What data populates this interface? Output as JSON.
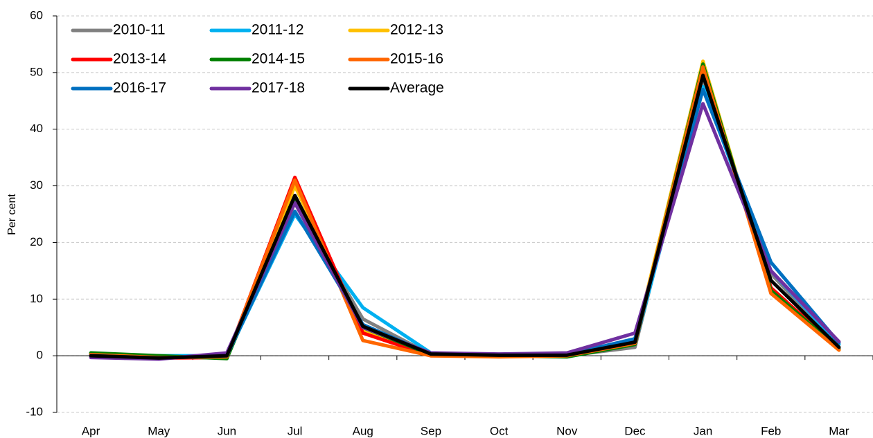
{
  "chart_data": {
    "type": "line",
    "y_label": "Per cent",
    "categories": [
      "Apr",
      "May",
      "Jun",
      "Jul",
      "Aug",
      "Sep",
      "Oct",
      "Nov",
      "Dec",
      "Jan",
      "Feb",
      "Mar"
    ],
    "series": [
      {
        "name": "2010-11",
        "color": "#808080",
        "values": [
          0,
          -0.3,
          0,
          27,
          6.5,
          0.2,
          0,
          0,
          1.5,
          49,
          14.5,
          1.5
        ]
      },
      {
        "name": "2011-12",
        "color": "#00b0f0",
        "values": [
          0,
          0,
          0,
          25,
          8.5,
          0.5,
          0,
          0,
          2,
          47.5,
          15,
          2
        ]
      },
      {
        "name": "2012-13",
        "color": "#ffc000",
        "values": [
          0.2,
          -0.3,
          -0.2,
          30,
          4.5,
          0,
          0,
          0,
          2.5,
          52,
          11.5,
          1
        ]
      },
      {
        "name": "2013-14",
        "color": "#ff0000",
        "values": [
          0.3,
          -0.4,
          -0.3,
          31.5,
          4,
          0,
          0,
          0,
          2,
          51,
          12,
          1.2
        ]
      },
      {
        "name": "2014-15",
        "color": "#008000",
        "values": [
          0.5,
          0,
          -0.5,
          28,
          5,
          0.2,
          0,
          -0.2,
          2,
          51.5,
          11.5,
          1.2
        ]
      },
      {
        "name": "2015-16",
        "color": "#ff6600",
        "values": [
          0.2,
          -0.3,
          -0.2,
          31,
          2.7,
          0,
          -0.2,
          0,
          2.2,
          51,
          11,
          1
        ]
      },
      {
        "name": "2016-17",
        "color": "#0070c0",
        "values": [
          0,
          -0.4,
          0,
          25.5,
          5.5,
          0.3,
          0.2,
          0.2,
          3,
          47,
          16.5,
          2.3
        ]
      },
      {
        "name": "2017-18",
        "color": "#7030a0",
        "values": [
          -0.3,
          -0.6,
          0.5,
          27,
          5,
          0.5,
          0.3,
          0.5,
          4,
          44.5,
          15,
          2.5
        ]
      },
      {
        "name": "Average",
        "color": "#000000",
        "values": [
          0,
          -0.4,
          0,
          28.3,
          5.2,
          0.3,
          0.1,
          0.1,
          2.4,
          49.5,
          13.3,
          1.5
        ]
      }
    ],
    "ylim": [
      -10,
      60
    ],
    "yticks": [
      -10,
      0,
      10,
      20,
      30,
      40,
      50,
      60
    ],
    "grid": true,
    "legend": "top-left"
  }
}
